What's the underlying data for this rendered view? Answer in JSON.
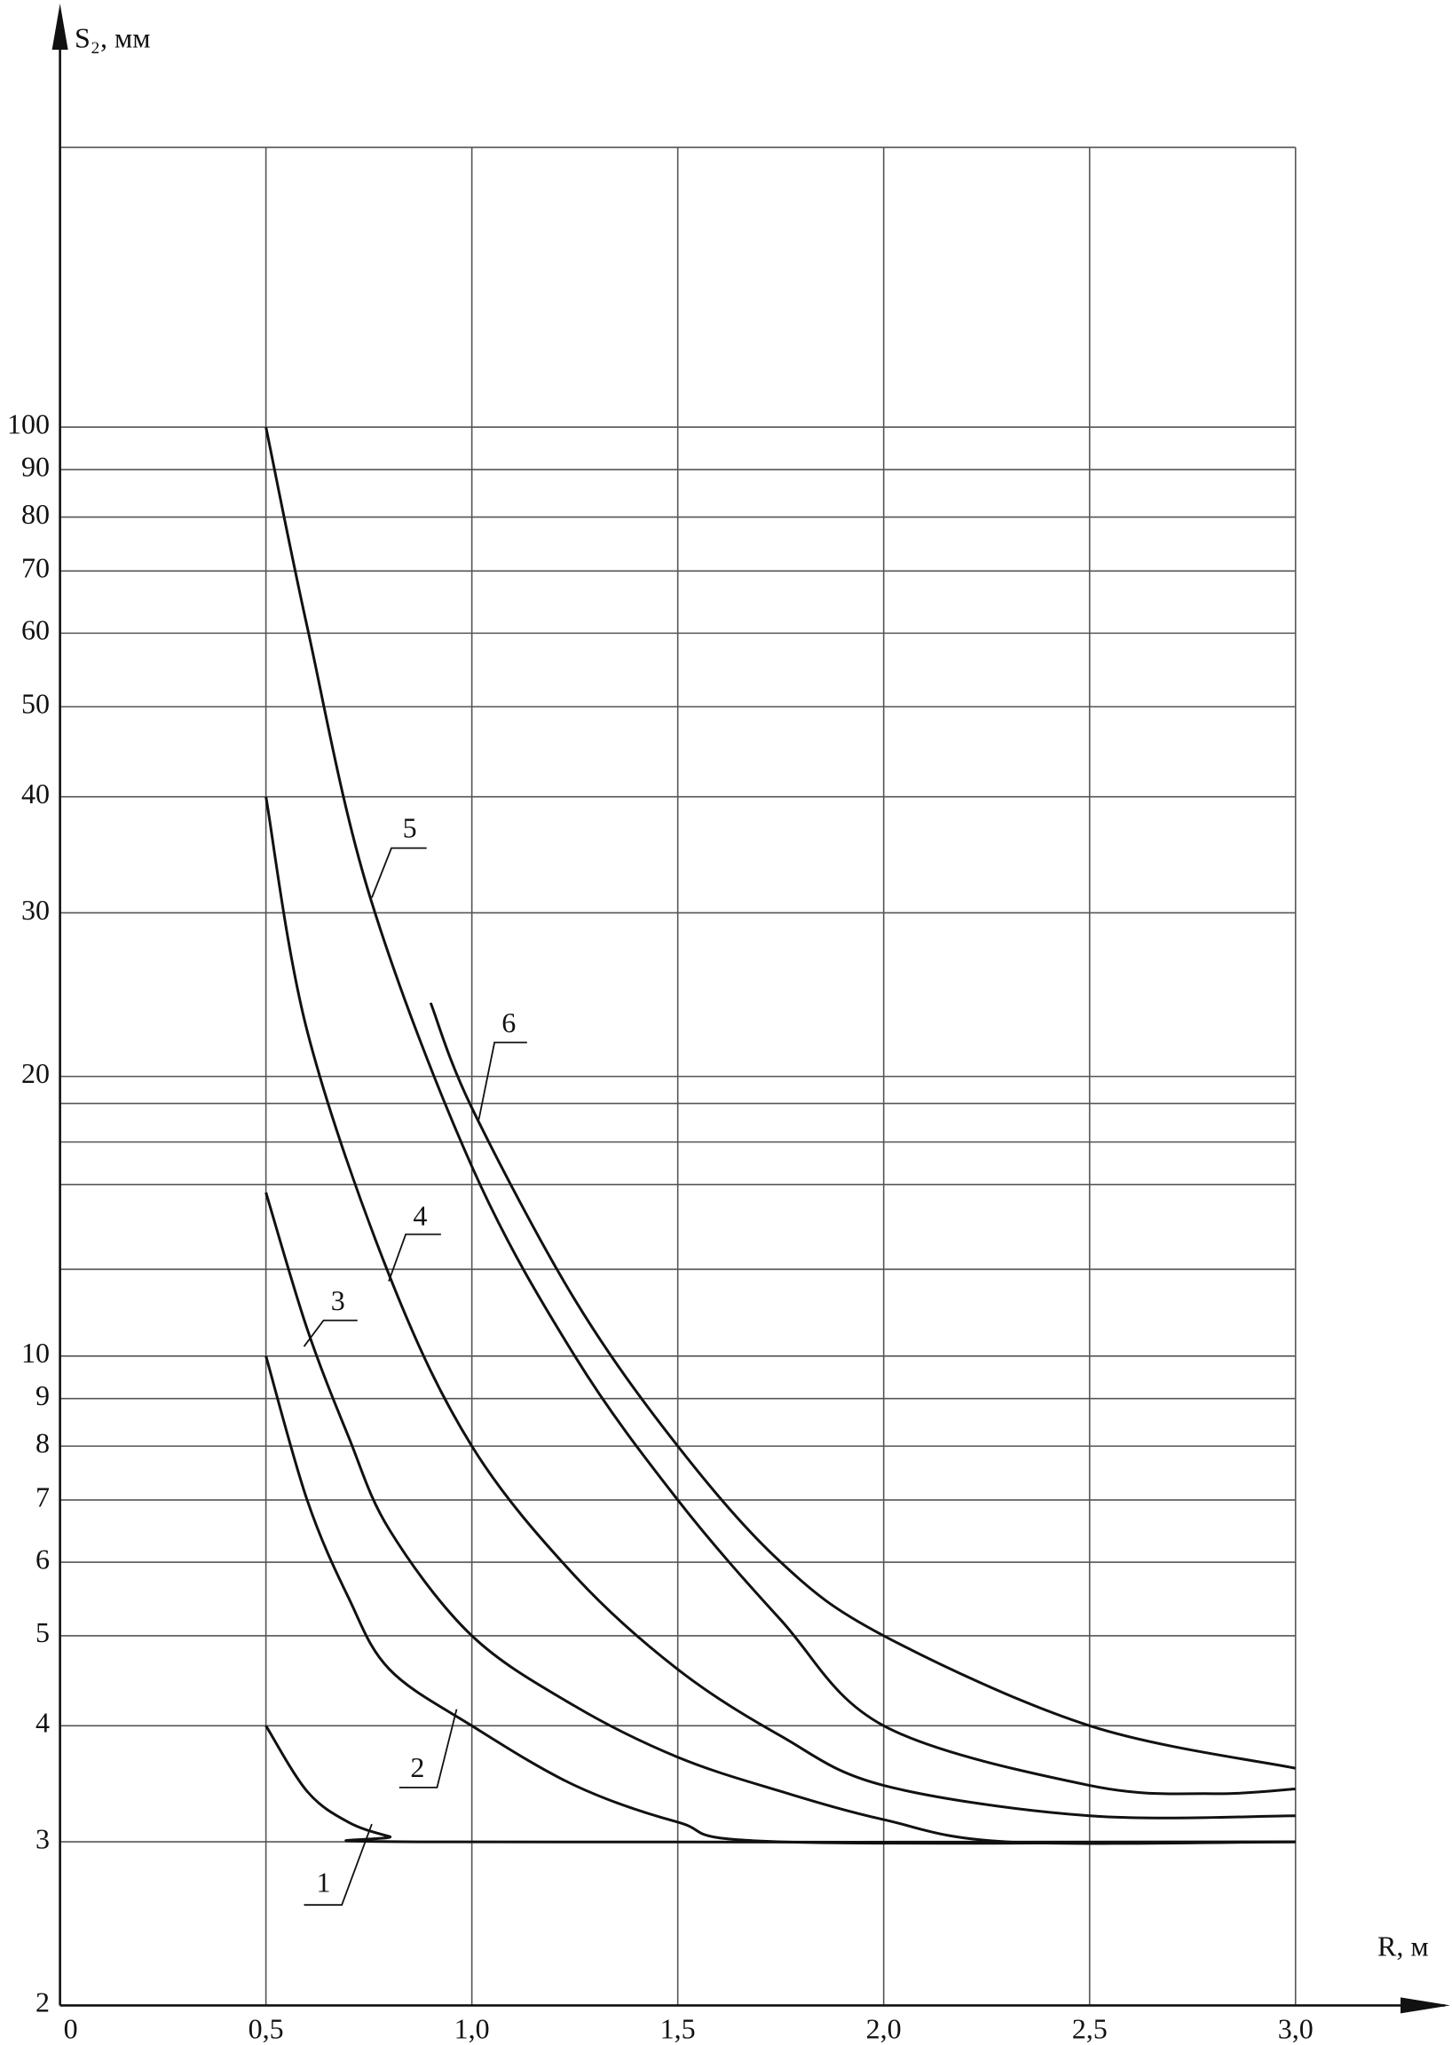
{
  "chart_data": {
    "type": "line",
    "y_label": "S₂, мм",
    "x_label": "R, м",
    "xlim": [
      0,
      3
    ],
    "xticks": [
      0,
      {
        "value": 0.5,
        "label": "0,5"
      },
      {
        "value": 1.0,
        "label": "1,0"
      },
      {
        "value": 1.5,
        "label": "1,5"
      },
      {
        "value": 2.0,
        "label": "2,0"
      },
      {
        "value": 2.5,
        "label": "2,5"
      },
      {
        "value": 3.0,
        "label": "3,0"
      }
    ],
    "ylim": [
      2,
      200
    ],
    "y_log": true,
    "yticks": [
      2,
      3,
      4,
      5,
      6,
      7,
      8,
      9,
      10,
      20,
      30,
      40,
      50,
      60,
      70,
      80,
      90,
      100
    ],
    "y_minor_grid": [
      12.4,
      15.3,
      17,
      18.7
    ],
    "grid": true,
    "series": [
      {
        "name": "1",
        "color": "#111111",
        "x": [
          0.5,
          0.6,
          0.7,
          0.8,
          0.87,
          3.0
        ],
        "values": [
          4,
          3.4,
          3.15,
          3.04,
          3,
          3
        ]
      },
      {
        "name": "2",
        "color": "#111111",
        "x": [
          0.5,
          0.6,
          0.7,
          0.8,
          1.0,
          1.25,
          1.5,
          1.75,
          3.0
        ],
        "values": [
          10,
          7.0,
          5.5,
          4.6,
          4.0,
          3.45,
          3.15,
          3.0,
          3.0
        ]
      },
      {
        "name": "3",
        "color": "#111111",
        "x": [
          0.5,
          0.6,
          0.7,
          0.8,
          1.0,
          1.25,
          1.5,
          1.75,
          2.0,
          2.3,
          3.0
        ],
        "values": [
          15,
          10.7,
          8.2,
          6.5,
          5.0,
          4.2,
          3.7,
          3.4,
          3.17,
          3.0,
          3.0
        ]
      },
      {
        "name": "4",
        "color": "#111111",
        "x": [
          0.5,
          0.6,
          0.8,
          1.0,
          1.25,
          1.5,
          1.75,
          2.0,
          2.5,
          3.0
        ],
        "values": [
          40,
          22.4,
          12.2,
          8.0,
          5.8,
          4.6,
          3.9,
          3.45,
          3.2,
          3.2
        ]
      },
      {
        "name": "5",
        "color": "#111111",
        "x": [
          0.5,
          0.6,
          0.75,
          1.0,
          1.25,
          1.5,
          1.75,
          2.0,
          2.5,
          2.8,
          3.0
        ],
        "values": [
          100,
          61,
          31.5,
          16,
          10,
          7.0,
          5.2,
          4.0,
          3.45,
          3.38,
          3.42
        ]
      },
      {
        "name": "6",
        "color": "#111111",
        "x": [
          0.9,
          1.0,
          1.25,
          1.5,
          1.75,
          2.0,
          2.5,
          3.0
        ],
        "values": [
          24,
          18.5,
          11.5,
          8.0,
          6.0,
          5.0,
          4.0,
          3.6
        ]
      }
    ]
  }
}
